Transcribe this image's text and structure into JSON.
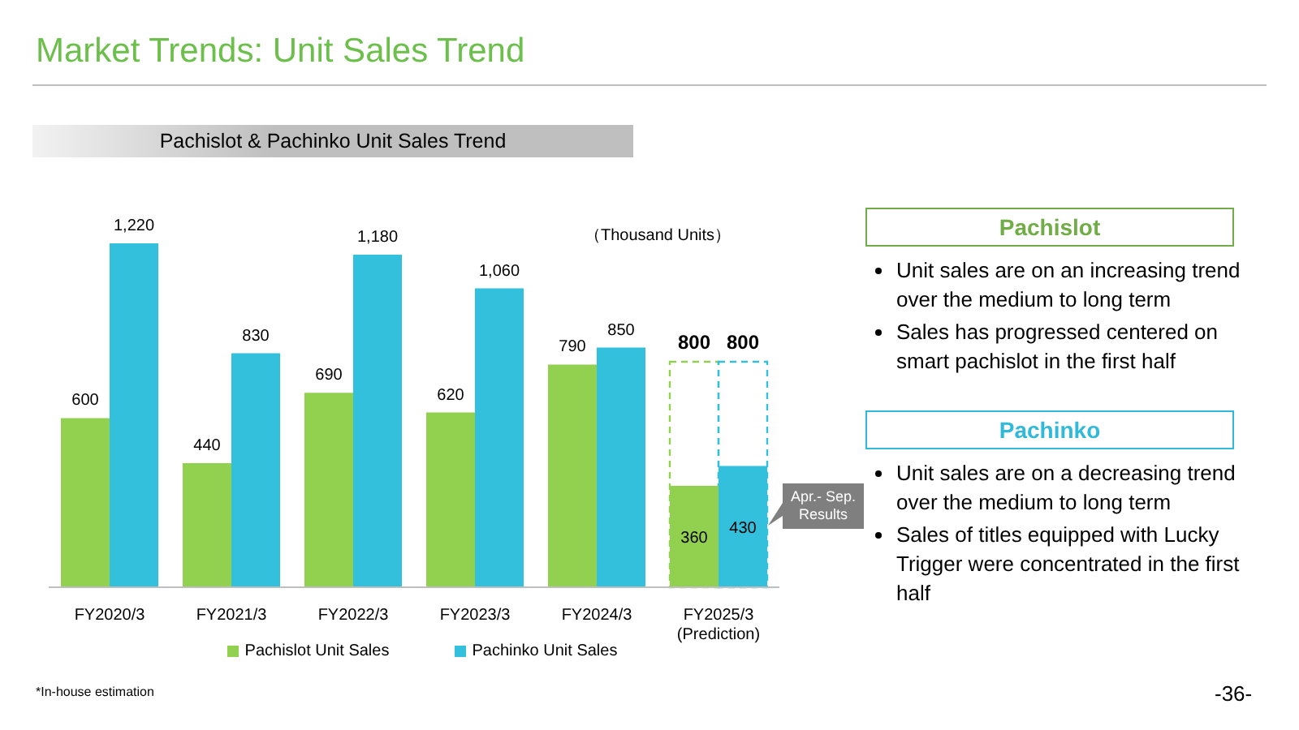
{
  "chart_data": {
    "type": "bar",
    "title": "Market Trends: Unit Sales Trend",
    "subtitle": "Pachislot & Pachinko Unit Sales Trend",
    "ylabel": "（Thousand Units）",
    "categories": [
      "FY2020/3",
      "FY2021/3",
      "FY2022/3",
      "FY2023/3",
      "FY2024/3",
      "FY2025/3 (Prediction)"
    ],
    "series": [
      {
        "name": "Pachislot Unit Sales",
        "color": "#92d050",
        "values": [
          600,
          440,
          690,
          620,
          790,
          800
        ],
        "value_labels": [
          "600",
          "440",
          "690",
          "620",
          "790",
          "800"
        ]
      },
      {
        "name": "Pachinko Unit Sales",
        "color": "#33c0dc",
        "values": [
          1220,
          830,
          1180,
          1060,
          850,
          800
        ],
        "value_labels": [
          "1,220",
          "830",
          "1,180",
          "1,060",
          "850",
          "800"
        ]
      },
      {
        "color": "#92d050",
        "values": [
          null,
          null,
          null,
          null,
          null,
          360
        ],
        "value_labels": [
          null,
          null,
          null,
          null,
          null,
          "360"
        ]
      },
      {
        "color": "#33c0dc",
        "values": [
          null,
          null,
          null,
          null,
          null,
          430
        ],
        "value_labels": [
          null,
          null,
          null,
          null,
          null,
          "430"
        ]
      }
    ],
    "legend": "bottom",
    "annotations": [
      "Apr.- Sep. Results",
      "Pachislot",
      "Unit sales are on an increasing trend over the medium to long term",
      "Sales has progressed centered on smart pachislot in the first half",
      "Pachinko",
      "Unit sales are on a decreasing trend over the medium to long term",
      "Sales of titles equipped with Lucky Trigger were concentrated in the first half",
      "*In-house estimation",
      "-36-"
    ]
  }
}
